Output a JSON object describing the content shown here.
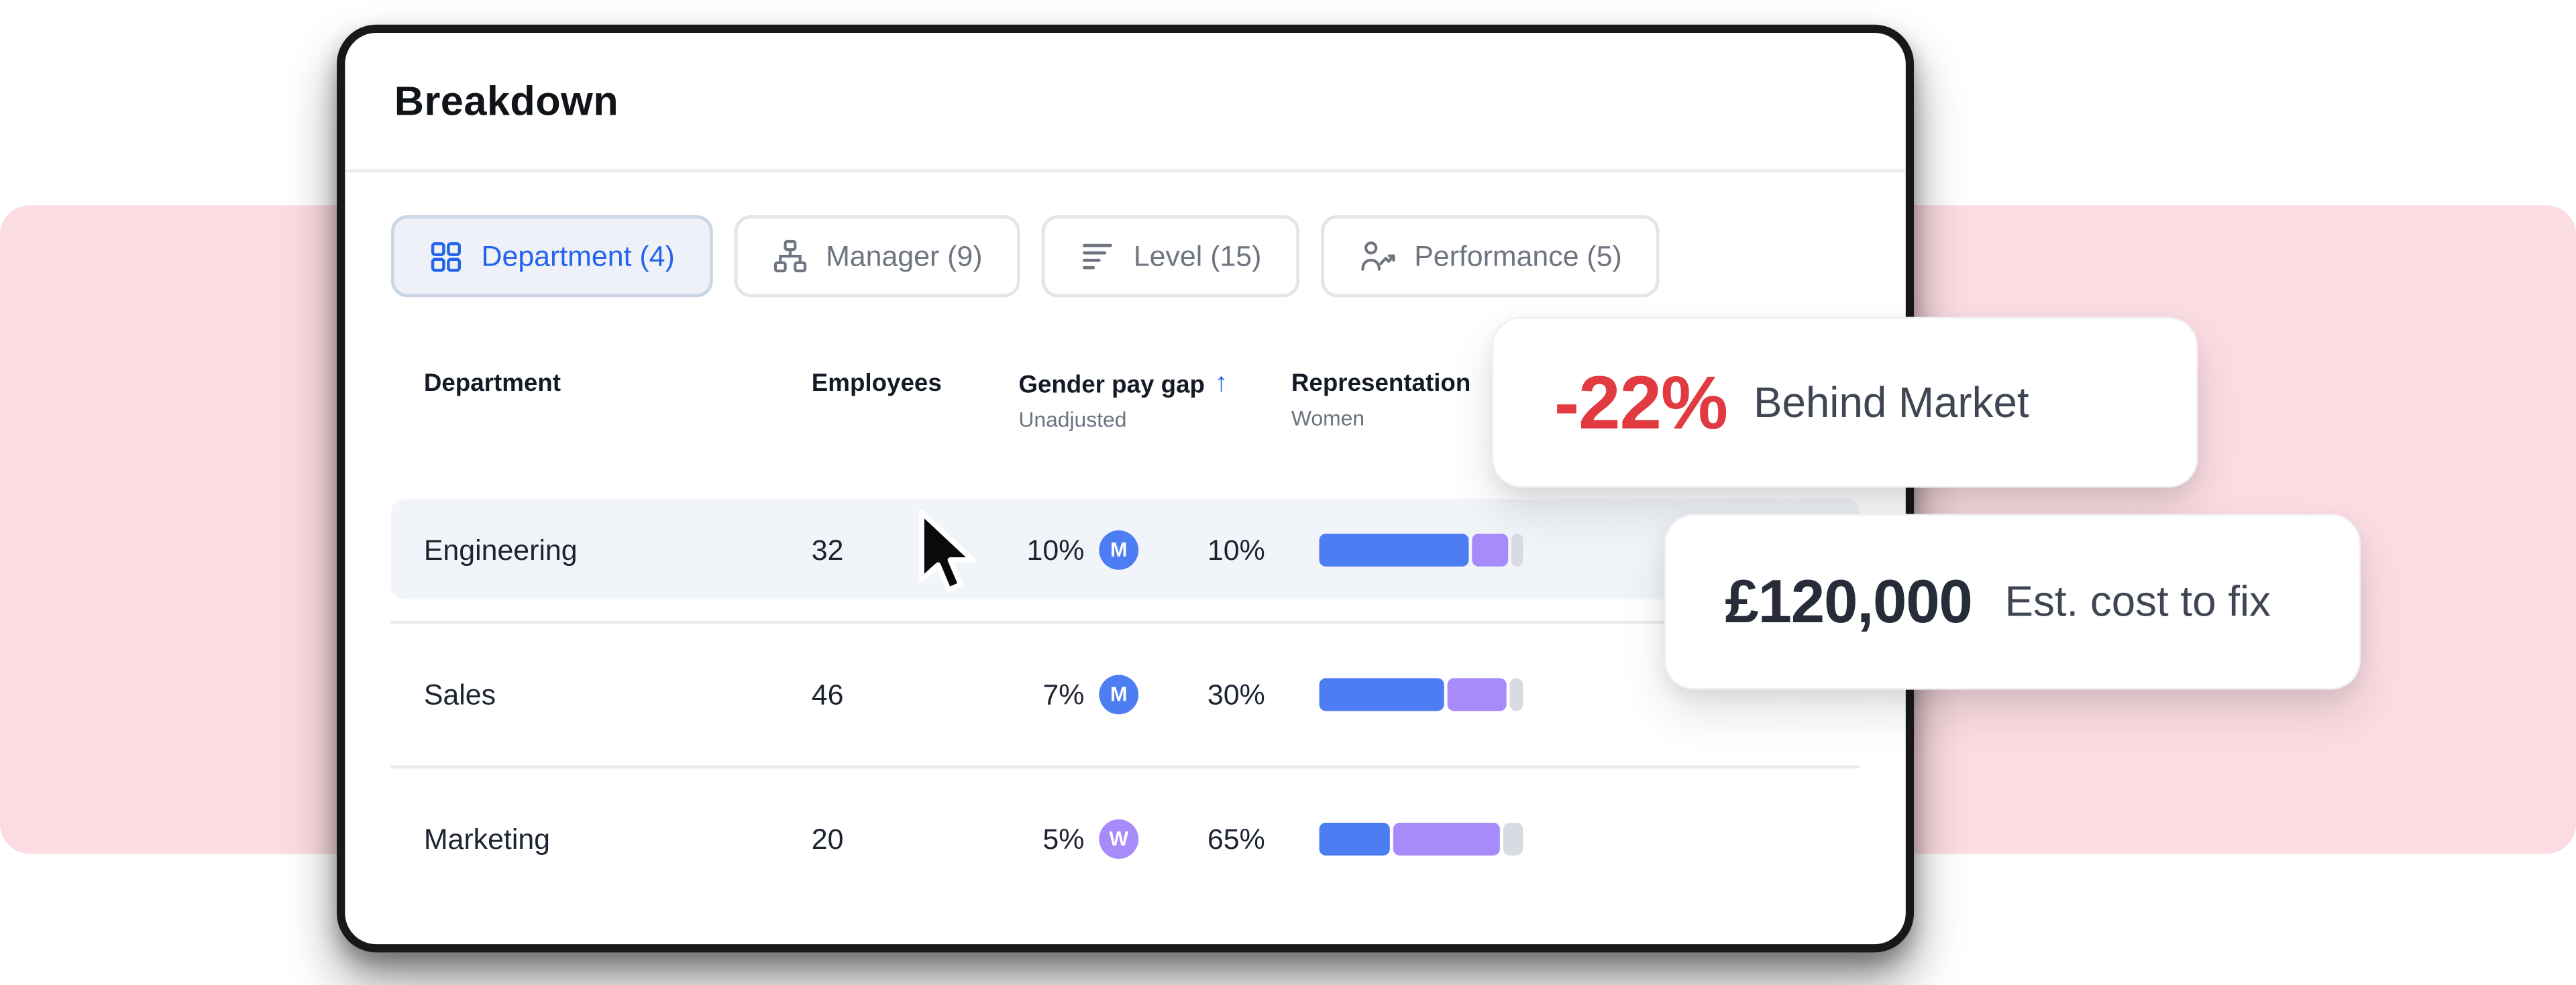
{
  "title": "Breakdown",
  "tabs": [
    {
      "label": "Department (4)",
      "selected": true
    },
    {
      "label": "Manager (9)",
      "selected": false
    },
    {
      "label": "Level (15)",
      "selected": false
    },
    {
      "label": "Performance (5)",
      "selected": false
    }
  ],
  "table": {
    "headers": {
      "department": "Department",
      "employees": "Employees",
      "pay_gap": "Gender pay gap",
      "pay_gap_sort": "↑",
      "pay_gap_sub": "Unadjusted",
      "representation": "Representation",
      "representation_sub": "Women"
    },
    "rows": [
      {
        "department": "Engineering",
        "employees": "32",
        "pay_gap": "10%",
        "badge": "M",
        "badge_color": "#4c7df2",
        "representation": "10%",
        "bar": {
          "blue": 76,
          "purple": 18,
          "gray": 6
        }
      },
      {
        "department": "Sales",
        "employees": "46",
        "pay_gap": "7%",
        "badge": "M",
        "badge_color": "#4c7df2",
        "representation": "30%",
        "bar": {
          "blue": 63,
          "purple": 30,
          "gray": 7
        }
      },
      {
        "department": "Marketing",
        "employees": "20",
        "pay_gap": "5%",
        "badge": "W",
        "badge_color": "#a78bfa",
        "representation": "65%",
        "bar": {
          "blue": 36,
          "purple": 54,
          "gray": 10
        }
      }
    ]
  },
  "callouts": {
    "market": {
      "value": "-22%",
      "label": "Behind Market"
    },
    "cost": {
      "value": "£120,000",
      "label": "Est. cost to fix"
    }
  },
  "colors": {
    "accent_blue": "#2563eb",
    "badge_blue": "#4c7df2",
    "badge_purple": "#a78bfa",
    "bar_blue": "#4c7df2",
    "bar_purple": "#a78bfa",
    "bar_gray": "#d8dbe2",
    "negative_red": "#e13a41",
    "pink_background": "#fbdce2",
    "row_highlight": "#f1f4f9"
  }
}
